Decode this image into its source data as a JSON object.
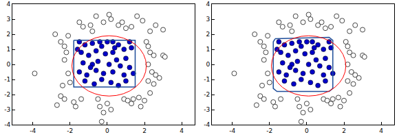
{
  "chart_data": [
    {
      "type": "scatter",
      "xlim": [
        -5.1,
        4.7
      ],
      "ylim": [
        -4,
        4
      ],
      "xticks": [
        -4,
        -2,
        0,
        2,
        4
      ],
      "yticks": [
        -4,
        -3,
        -2,
        -1,
        0,
        1,
        2,
        3,
        4
      ],
      "grid": false,
      "circle": {
        "x": 0.1,
        "y": -0.1,
        "radius": 2.0,
        "color": "#ff0000"
      },
      "series": [
        {
          "type": "scatter",
          "marker": "open circle",
          "color": "#444444",
          "x": [
            -0.6,
            0.1,
            0.2,
            -0.2,
            1.6,
            1.9,
            1.3,
            1.0,
            0.6,
            0.8,
            -0.9,
            -1.5,
            -1.3,
            -0.8,
            -2.8,
            -3.9,
            -2.1,
            -2.5,
            -2.3,
            -2.2,
            -2.3,
            -2.1,
            -2.4,
            -2.0,
            -2.5,
            -2.3,
            -2.7,
            -1.8,
            -1.7,
            -1.4,
            -0.5,
            0.0,
            0.2,
            -0.2,
            -0.3,
            -0.4,
            0.9,
            1.1,
            1.3,
            1.4,
            1.7,
            2.0,
            1.8,
            2.3,
            2.1,
            2.2,
            2.3,
            2.5,
            2.2,
            2.4,
            2.6,
            3.0,
            3.1,
            2.8,
            2.2,
            2.5,
            2.3,
            2.6,
            3.0
          ],
          "y": [
            3.2,
            3.3,
            3.0,
            2.8,
            3.2,
            2.9,
            2.5,
            2.4,
            2.6,
            2.8,
            2.6,
            2.8,
            2.5,
            2.2,
            2.0,
            -0.6,
            1.9,
            1.5,
            1.2,
            0.8,
            0.3,
            -0.6,
            -1.4,
            -1.2,
            -2.1,
            -2.3,
            -2.7,
            -2.5,
            -2.8,
            -2.3,
            -2.3,
            -2.6,
            -3.0,
            -3.2,
            -3.8,
            -2.8,
            -2.3,
            -2.4,
            -2.6,
            -2.3,
            -2.2,
            -2.4,
            -2.8,
            -1.9,
            1.5,
            1.2,
            0.8,
            0.6,
            0.0,
            -0.5,
            -0.7,
            0.6,
            0.5,
            -0.9,
            -1.1,
            -1.3,
            2.2,
            2.6,
            2.3
          ]
        },
        {
          "type": "scatter",
          "marker": "filled circle",
          "color": "#0000c8",
          "x": [
            -1.5,
            -1.2,
            -0.8,
            -0.4,
            -0.3,
            0.0,
            0.3,
            0.6,
            1.2,
            0.9,
            1.3,
            -1.4,
            -1.0,
            -0.6,
            -0.1,
            0.3,
            0.5,
            1.0,
            -1.3,
            -0.8,
            -0.5,
            0.1,
            0.7,
            1.2,
            -1.5,
            -1.1,
            -0.6,
            -0.2,
            0.3,
            0.9,
            1.4,
            -1.2,
            -0.7,
            -0.3,
            0.2,
            0.6,
            1.0,
            -1.6,
            0.4,
            -0.9
          ],
          "y": [
            1.5,
            1.3,
            1.4,
            1.5,
            1.2,
            1.5,
            1.5,
            1.3,
            1.5,
            1.0,
            1.1,
            0.8,
            0.6,
            0.9,
            0.7,
            0.8,
            0.3,
            0.4,
            0.1,
            0.0,
            0.2,
            0.0,
            -0.1,
            -0.2,
            -0.5,
            -0.7,
            -0.4,
            -0.6,
            -0.5,
            -0.7,
            -0.6,
            -1.1,
            -1.3,
            -1.0,
            -1.2,
            -1.4,
            -1.1,
            1.0,
            1.1,
            -0.2
          ]
        },
        {
          "type": "line",
          "color": "#1f4e9a",
          "x": [
            -1.8,
            1.5,
            1.5,
            -1.8,
            -1.8
          ],
          "y": [
            1.6,
            1.6,
            -1.5,
            -1.5,
            1.6
          ]
        }
      ]
    },
    {
      "type": "scatter",
      "xlim": [
        -5.1,
        4.7
      ],
      "ylim": [
        -4,
        4
      ],
      "xticks": [
        -4,
        -2,
        0,
        2,
        4
      ],
      "yticks": [
        -4,
        -3,
        -2,
        -1,
        0,
        1,
        2,
        3,
        4
      ],
      "grid": false,
      "circle": {
        "x": 0.1,
        "y": -0.1,
        "radius": 2.0,
        "color": "#ff0000"
      },
      "series": [
        {
          "type": "scatter",
          "marker": "open circle",
          "color": "#444444",
          "x": [
            -0.6,
            0.1,
            0.2,
            -0.2,
            1.6,
            1.9,
            1.3,
            1.0,
            0.6,
            0.8,
            -0.9,
            -1.5,
            -1.3,
            -0.8,
            -2.8,
            -3.9,
            -2.1,
            -2.5,
            -2.3,
            -2.2,
            -2.3,
            -2.1,
            -2.4,
            -2.0,
            -2.5,
            -2.3,
            -2.7,
            -1.8,
            -1.7,
            -1.4,
            -0.5,
            0.0,
            0.2,
            -0.2,
            -0.3,
            -0.4,
            0.9,
            1.1,
            1.3,
            1.4,
            1.7,
            2.0,
            1.8,
            2.3,
            2.1,
            2.2,
            2.3,
            2.5,
            2.2,
            2.4,
            2.6,
            3.0,
            3.1,
            2.8,
            2.2,
            2.5,
            2.3,
            2.6,
            3.0
          ],
          "y": [
            3.2,
            3.3,
            3.0,
            2.8,
            3.2,
            2.9,
            2.5,
            2.4,
            2.6,
            2.8,
            2.6,
            2.8,
            2.5,
            2.2,
            2.0,
            -0.6,
            1.9,
            1.5,
            1.2,
            0.8,
            0.3,
            -0.6,
            -1.4,
            -1.2,
            -2.1,
            -2.3,
            -2.7,
            -2.5,
            -2.8,
            -2.3,
            -2.3,
            -2.6,
            -3.0,
            -3.2,
            -3.8,
            -2.8,
            -2.3,
            -2.4,
            -2.6,
            -2.3,
            -2.2,
            -2.4,
            -2.8,
            -1.9,
            1.5,
            1.2,
            0.8,
            0.6,
            0.0,
            -0.5,
            -0.7,
            0.6,
            0.5,
            -0.9,
            -1.1,
            -1.3,
            2.2,
            2.6,
            2.3
          ]
        },
        {
          "type": "scatter",
          "marker": "filled circle",
          "color": "#0000c8",
          "x": [
            -1.5,
            -1.2,
            -0.8,
            -0.4,
            -0.3,
            0.0,
            0.3,
            0.6,
            1.2,
            0.9,
            1.3,
            -1.4,
            -1.0,
            -0.6,
            -0.1,
            0.3,
            0.5,
            1.0,
            -1.3,
            -0.8,
            -0.5,
            0.1,
            0.7,
            1.2,
            -1.5,
            -1.1,
            -0.6,
            -0.2,
            0.3,
            0.9,
            1.4,
            -1.2,
            -0.7,
            -0.3,
            0.2,
            0.6,
            1.0,
            -1.6,
            0.4,
            -0.9
          ],
          "y": [
            1.5,
            1.3,
            1.4,
            1.5,
            1.2,
            1.5,
            1.5,
            1.3,
            1.5,
            1.0,
            1.1,
            0.8,
            0.6,
            0.9,
            0.7,
            0.8,
            0.3,
            0.4,
            0.1,
            0.0,
            0.2,
            0.0,
            -0.1,
            -0.2,
            -0.5,
            -0.7,
            -0.4,
            -0.6,
            -0.5,
            -0.7,
            -0.6,
            -1.1,
            -1.3,
            -1.0,
            -1.2,
            -1.4,
            -1.1,
            1.0,
            1.1,
            -0.2
          ]
        },
        {
          "type": "line",
          "color": "#1f4e9a",
          "x": [
            -1.7,
            1.2,
            1.4,
            1.4,
            1.2,
            -1.6,
            -1.8,
            -1.8,
            -1.7
          ],
          "y": [
            1.7,
            1.8,
            1.6,
            -1.6,
            -1.8,
            -1.8,
            -1.6,
            1.5,
            1.7
          ]
        }
      ]
    }
  ]
}
